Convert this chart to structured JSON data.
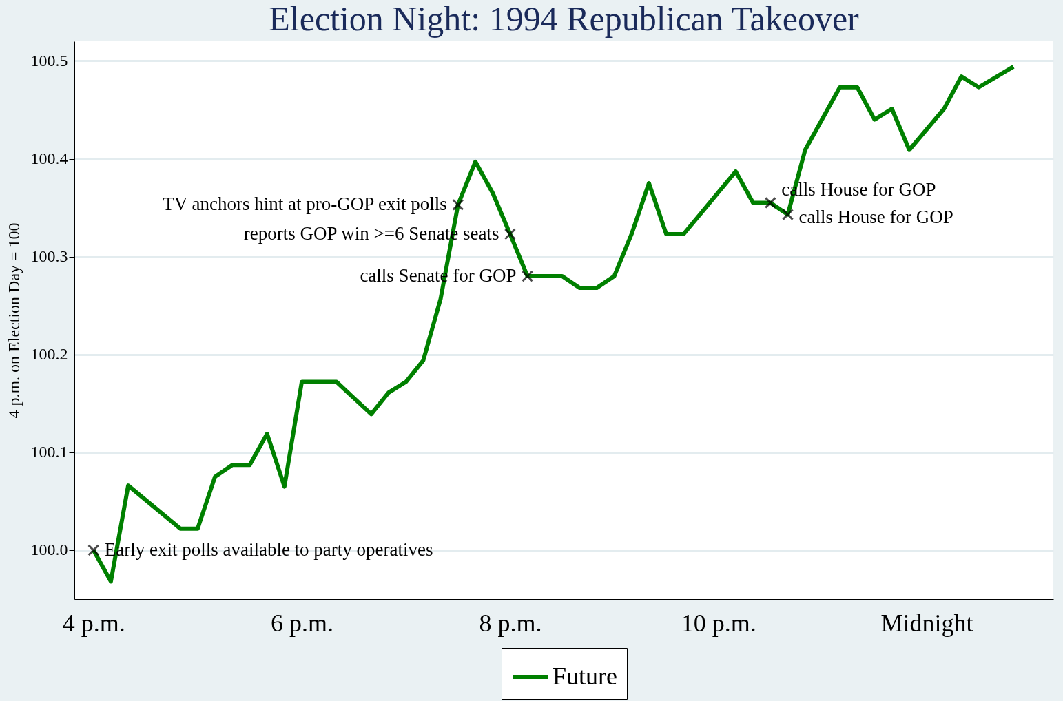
{
  "chart_data": {
    "type": "line",
    "title": "Election Night: 1994 Republican Takeover",
    "ylabel": "4 p.m. on Election Day = 100",
    "x": [
      "1994-11-08T16:00",
      "1994-11-08T16:10",
      "1994-11-08T16:20",
      "1994-11-08T16:50",
      "1994-11-08T17:00",
      "1994-11-08T17:10",
      "1994-11-08T17:20",
      "1994-11-08T17:30",
      "1994-11-08T17:40",
      "1994-11-08T17:50",
      "1994-11-08T18:00",
      "1994-11-08T18:20",
      "1994-11-08T18:40",
      "1994-11-08T18:50",
      "1994-11-08T19:00",
      "1994-11-08T19:10",
      "1994-11-08T19:20",
      "1994-11-08T19:30",
      "1994-11-08T19:40",
      "1994-11-08T19:50",
      "1994-11-08T20:00",
      "1994-11-08T20:10",
      "1994-11-08T20:30",
      "1994-11-08T20:40",
      "1994-11-08T20:50",
      "1994-11-08T21:00",
      "1994-11-08T21:10",
      "1994-11-08T21:20",
      "1994-11-08T21:30",
      "1994-11-08T21:40",
      "1994-11-08T22:10",
      "1994-11-08T22:20",
      "1994-11-08T22:30",
      "1994-11-08T22:40",
      "1994-11-08T22:50",
      "1994-11-08T23:10",
      "1994-11-08T23:20",
      "1994-11-08T23:30",
      "1994-11-08T23:40",
      "1994-11-08T23:50",
      "1994-11-09T00:10",
      "1994-11-09T00:20",
      "1994-11-09T00:30",
      "1994-11-09T00:50"
    ],
    "series": [
      {
        "name": "Future",
        "color": "#008000",
        "values": [
          100.0,
          99.968,
          100.066,
          100.022,
          100.022,
          100.075,
          100.087,
          100.087,
          100.119,
          100.065,
          100.172,
          100.172,
          100.139,
          100.161,
          100.172,
          100.194,
          100.257,
          100.353,
          100.397,
          100.365,
          100.323,
          100.28,
          100.28,
          100.268,
          100.268,
          100.28,
          100.323,
          100.375,
          100.323,
          100.323,
          100.387,
          100.355,
          100.355,
          100.343,
          100.409,
          100.473,
          100.473,
          100.44,
          100.451,
          100.409,
          100.451,
          100.484,
          100.473,
          100.494
        ]
      }
    ],
    "xlim": [
      "1994-11-08T15:49",
      "1994-11-09T01:13"
    ],
    "xticks": [
      {
        "value": "1994-11-08T16:00",
        "label": "4 p.m."
      },
      {
        "value": "1994-11-08T17:00",
        "label": null
      },
      {
        "value": "1994-11-08T18:00",
        "label": "6 p.m."
      },
      {
        "value": "1994-11-08T19:00",
        "label": null
      },
      {
        "value": "1994-11-08T20:00",
        "label": "8 p.m."
      },
      {
        "value": "1994-11-08T21:00",
        "label": null
      },
      {
        "value": "1994-11-08T22:00",
        "label": "10 p.m."
      },
      {
        "value": "1994-11-08T23:00",
        "label": null
      },
      {
        "value": "1994-11-09T00:00",
        "label": "Midnight"
      },
      {
        "value": "1994-11-09T01:00",
        "label": null
      }
    ],
    "ylim": [
      99.95,
      100.52
    ],
    "yticks": [
      {
        "value": 100,
        "label": "100.0"
      },
      100.1,
      100.2,
      100.3,
      100.4,
      100.5
    ],
    "grid": "y",
    "legend": "bottom",
    "marker": "none",
    "line_style": "solid",
    "annotations": [
      {
        "text": "Early exit polls available to party operatives",
        "x": "1994-11-08T16:00",
        "y": 100.0
      },
      {
        "text": "TV anchors hint at pro-GOP exit polls",
        "x": "1994-11-08T19:30",
        "y": 100.353
      },
      {
        "text": "reports GOP win >=6 Senate seats",
        "x": "1994-11-08T20:00",
        "y": 100.323
      },
      {
        "text": "calls Senate for GOP",
        "x": "1994-11-08T20:10",
        "y": 100.28
      },
      {
        "text": "calls House for GOP",
        "x": "1994-11-08T22:30",
        "y": 100.355
      },
      {
        "text": "calls House for GOP",
        "x": "1994-11-08T22:40",
        "y": 100.343
      }
    ]
  }
}
